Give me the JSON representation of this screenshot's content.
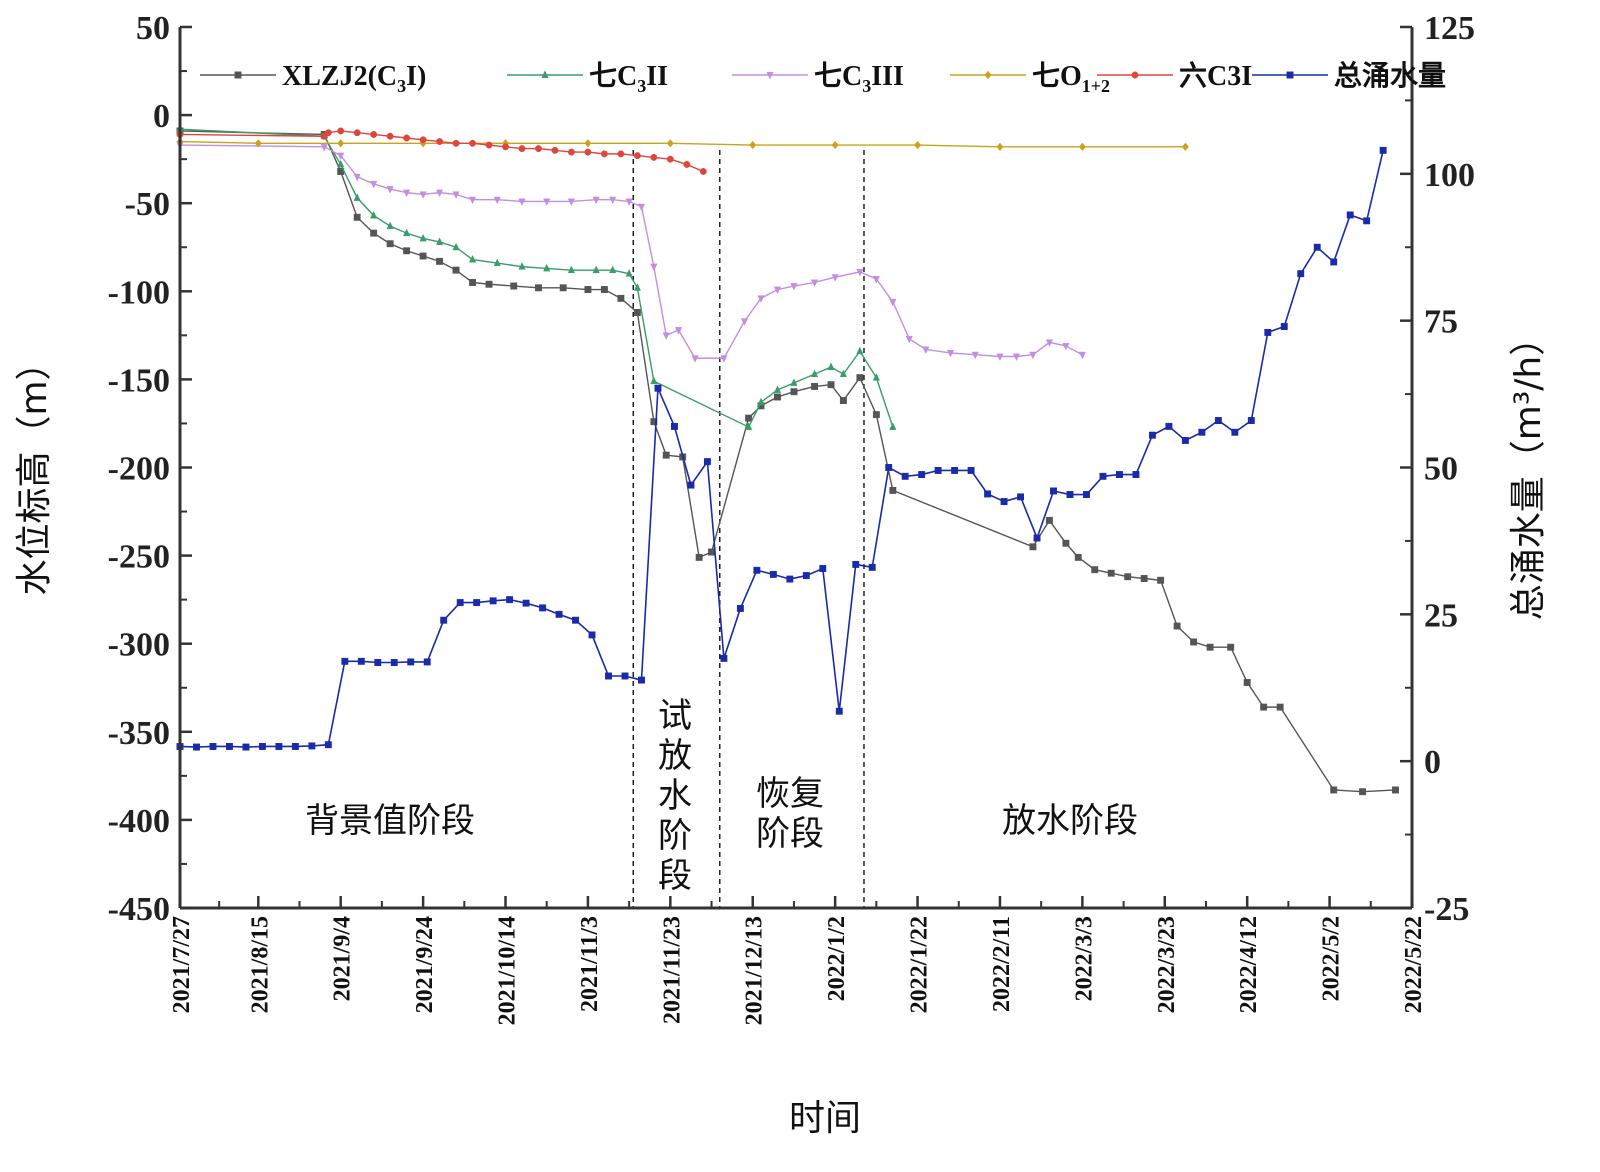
{
  "chart_data": {
    "type": "line",
    "xlabel": "时间",
    "ylabel_left": "水位标高（m）",
    "ylabel_right": "总涌水量（m³/h）",
    "x_ticks": [
      "2021/7/27",
      "2021/8/15",
      "2021/9/4",
      "2021/9/24",
      "2021/10/14",
      "2021/11/3",
      "2021/11/23",
      "2021/12/13",
      "2022/1/2",
      "2022/1/22",
      "2022/2/11",
      "2022/3/3",
      "2022/3/23",
      "2022/4/12",
      "2022/5/2",
      "2022/5/22"
    ],
    "y_left": {
      "min": -450,
      "max": 50,
      "ticks": [
        "50",
        "0",
        "-50",
        "-100",
        "-150",
        "-200",
        "-250",
        "-300",
        "-350",
        "-400",
        "-450"
      ]
    },
    "y_right": {
      "min": -25,
      "max": 125,
      "ticks": [
        "125",
        "100",
        "75",
        "50",
        "25",
        "0",
        "-25"
      ]
    },
    "phase_dividers": [
      "2021/11/14",
      "2021/12/5",
      "2022/1/9"
    ],
    "phases": [
      {
        "label": "背景值阶段"
      },
      {
        "label": "试放水阶段",
        "chars": [
          "试",
          "放",
          "水",
          "阶",
          "段"
        ]
      },
      {
        "label": "恢复阶段",
        "lines": [
          "恢复",
          "阶段"
        ]
      },
      {
        "label": "放水阶段"
      }
    ],
    "series": [
      {
        "name": "XLZJ2(C₃I)",
        "name_main": "XLZJ2(C",
        "name_sub": "3",
        "name_tail": "I)",
        "color": "#555555",
        "marker": "square",
        "axis": "left",
        "points": [
          [
            "2021/7/27",
            -9
          ],
          [
            "2021/8/31",
            -11
          ],
          [
            "2021/9/4",
            -32
          ],
          [
            "2021/9/8",
            -58
          ],
          [
            "2021/9/12",
            -67
          ],
          [
            "2021/9/16",
            -73
          ],
          [
            "2021/9/20",
            -77
          ],
          [
            "2021/9/24",
            -80
          ],
          [
            "2021/9/28",
            -83
          ],
          [
            "2021/10/2",
            -88
          ],
          [
            "2021/10/6",
            -95
          ],
          [
            "2021/10/10",
            -96
          ],
          [
            "2021/10/16",
            -97
          ],
          [
            "2021/10/22",
            -98
          ],
          [
            "2021/10/28",
            -98
          ],
          [
            "2021/11/3",
            -99
          ],
          [
            "2021/11/7",
            -99
          ],
          [
            "2021/11/11",
            -104
          ],
          [
            "2021/11/15",
            -112
          ],
          [
            "2021/11/19",
            -174
          ],
          [
            "2021/11/22",
            -193
          ],
          [
            "2021/11/26",
            -194
          ],
          [
            "2021/11/30",
            -251
          ],
          [
            "2021/12/3",
            -248
          ],
          [
            "2021/12/12",
            -172
          ],
          [
            "2021/12/15",
            -165
          ],
          [
            "2021/12/19",
            -160
          ],
          [
            "2021/12/23",
            -157
          ],
          [
            "2021/12/28",
            -154
          ],
          [
            "2022/1/1",
            -153
          ],
          [
            "2022/1/4",
            -162
          ],
          [
            "2022/1/8",
            -149
          ],
          [
            "2022/1/12",
            -170
          ],
          [
            "2022/1/16",
            -213
          ],
          [
            "2022/2/19",
            -245
          ],
          [
            "2022/2/23",
            -230
          ],
          [
            "2022/2/27",
            -243
          ],
          [
            "2022/3/2",
            -251
          ],
          [
            "2022/3/6",
            -258
          ],
          [
            "2022/3/10",
            -260
          ],
          [
            "2022/3/14",
            -262
          ],
          [
            "2022/3/18",
            -263
          ],
          [
            "2022/3/22",
            -264
          ],
          [
            "2022/3/26",
            -290
          ],
          [
            "2022/3/30",
            -299
          ],
          [
            "2022/4/3",
            -302
          ],
          [
            "2022/4/8",
            -302
          ],
          [
            "2022/4/12",
            -322
          ],
          [
            "2022/4/16",
            -336
          ],
          [
            "2022/4/20",
            -336
          ],
          [
            "2022/5/3",
            -383
          ],
          [
            "2022/5/10",
            -384
          ],
          [
            "2022/5/18",
            -383
          ]
        ]
      },
      {
        "name": "七C₃II",
        "name_main": "七C",
        "name_sub": "3",
        "name_tail": "II",
        "color": "#3a9d68",
        "marker": "triangle-up",
        "axis": "left",
        "points": [
          [
            "2021/7/27",
            -8
          ],
          [
            "2021/8/31",
            -12
          ],
          [
            "2021/9/4",
            -28
          ],
          [
            "2021/9/8",
            -47
          ],
          [
            "2021/9/12",
            -57
          ],
          [
            "2021/9/16",
            -63
          ],
          [
            "2021/9/20",
            -67
          ],
          [
            "2021/9/24",
            -70
          ],
          [
            "2021/9/28",
            -72
          ],
          [
            "2021/10/2",
            -75
          ],
          [
            "2021/10/6",
            -82
          ],
          [
            "2021/10/12",
            -84
          ],
          [
            "2021/10/18",
            -86
          ],
          [
            "2021/10/24",
            -87
          ],
          [
            "2021/10/30",
            -88
          ],
          [
            "2021/11/5",
            -88
          ],
          [
            "2021/11/9",
            -88
          ],
          [
            "2021/11/13",
            -90
          ],
          [
            "2021/11/15",
            -98
          ],
          [
            "2021/11/19",
            -151
          ],
          [
            "2021/12/12",
            -177
          ],
          [
            "2021/12/15",
            -163
          ],
          [
            "2021/12/19",
            -156
          ],
          [
            "2021/12/23",
            -152
          ],
          [
            "2021/12/28",
            -147
          ],
          [
            "2022/1/1",
            -143
          ],
          [
            "2022/1/4",
            -147
          ],
          [
            "2022/1/8",
            -134
          ],
          [
            "2022/1/12",
            -149
          ],
          [
            "2022/1/16",
            -177
          ]
        ]
      },
      {
        "name": "七C₃III",
        "name_main": "七C",
        "name_sub": "3",
        "name_tail": "III",
        "color": "#c48ee0",
        "marker": "triangle-down",
        "axis": "left",
        "points": [
          [
            "2021/7/27",
            -17
          ],
          [
            "2021/8/31",
            -18
          ],
          [
            "2021/9/4",
            -23
          ],
          [
            "2021/9/8",
            -35
          ],
          [
            "2021/9/12",
            -39
          ],
          [
            "2021/9/16",
            -42
          ],
          [
            "2021/9/20",
            -44
          ],
          [
            "2021/9/24",
            -45
          ],
          [
            "2021/9/28",
            -44
          ],
          [
            "2021/10/2",
            -45
          ],
          [
            "2021/10/6",
            -48
          ],
          [
            "2021/10/12",
            -48
          ],
          [
            "2021/10/18",
            -49
          ],
          [
            "2021/10/24",
            -49
          ],
          [
            "2021/10/30",
            -49
          ],
          [
            "2021/11/5",
            -48
          ],
          [
            "2021/11/9",
            -48
          ],
          [
            "2021/11/13",
            -49
          ],
          [
            "2021/11/16",
            -52
          ],
          [
            "2021/11/19",
            -86
          ],
          [
            "2021/11/22",
            -125
          ],
          [
            "2021/11/25",
            -122
          ],
          [
            "2021/11/29",
            -138
          ],
          [
            "2021/12/6",
            -138
          ],
          [
            "2021/12/11",
            -117
          ],
          [
            "2021/12/15",
            -104
          ],
          [
            "2021/12/19",
            -99
          ],
          [
            "2021/12/23",
            -97
          ],
          [
            "2021/12/28",
            -95
          ],
          [
            "2022/1/2",
            -92
          ],
          [
            "2022/1/8",
            -89
          ],
          [
            "2022/1/12",
            -93
          ],
          [
            "2022/1/16",
            -106
          ],
          [
            "2022/1/20",
            -127
          ],
          [
            "2022/1/24",
            -133
          ],
          [
            "2022/1/30",
            -135
          ],
          [
            "2022/2/5",
            -136
          ],
          [
            "2022/2/11",
            -137
          ],
          [
            "2022/2/15",
            -137
          ],
          [
            "2022/2/19",
            -136
          ],
          [
            "2022/2/23",
            -129
          ],
          [
            "2022/2/27",
            -131
          ],
          [
            "2022/3/3",
            -136
          ]
        ]
      },
      {
        "name": "七O₁₊₂",
        "name_main": "七O",
        "name_sub": "1+2",
        "name_tail": "",
        "color": "#c9a31a",
        "marker": "diamond",
        "axis": "left",
        "points": [
          [
            "2021/7/27",
            -15
          ],
          [
            "2021/8/15",
            -16
          ],
          [
            "2021/9/4",
            -16
          ],
          [
            "2021/9/24",
            -16
          ],
          [
            "2021/10/14",
            -16
          ],
          [
            "2021/11/3",
            -16
          ],
          [
            "2021/11/23",
            -16
          ],
          [
            "2021/12/13",
            -17
          ],
          [
            "2022/1/2",
            -17
          ],
          [
            "2022/1/22",
            -17
          ],
          [
            "2022/2/11",
            -18
          ],
          [
            "2022/3/3",
            -18
          ],
          [
            "2022/3/28",
            -18
          ]
        ]
      },
      {
        "name": "六C3I",
        "name_main": "六C3I",
        "name_sub": "",
        "name_tail": "",
        "color": "#e0453c",
        "marker": "circle",
        "axis": "left",
        "points": [
          [
            "2021/7/27",
            -11
          ],
          [
            "2021/8/31",
            -12
          ],
          [
            "2021/9/1",
            -10
          ],
          [
            "2021/9/4",
            -9
          ],
          [
            "2021/9/8",
            -10
          ],
          [
            "2021/9/12",
            -11
          ],
          [
            "2021/9/16",
            -12
          ],
          [
            "2021/9/20",
            -13
          ],
          [
            "2021/9/24",
            -14
          ],
          [
            "2021/9/28",
            -15
          ],
          [
            "2021/10/2",
            -16
          ],
          [
            "2021/10/6",
            -16
          ],
          [
            "2021/10/10",
            -17
          ],
          [
            "2021/10/14",
            -18
          ],
          [
            "2021/10/18",
            -19
          ],
          [
            "2021/10/22",
            -19
          ],
          [
            "2021/10/26",
            -20
          ],
          [
            "2021/10/30",
            -21
          ],
          [
            "2021/11/3",
            -21
          ],
          [
            "2021/11/7",
            -22
          ],
          [
            "2021/11/11",
            -22
          ],
          [
            "2021/11/15",
            -23
          ],
          [
            "2021/11/19",
            -24
          ],
          [
            "2021/11/23",
            -25
          ],
          [
            "2021/11/27",
            -28
          ],
          [
            "2021/12/1",
            -32
          ]
        ]
      },
      {
        "name": "总涌水量",
        "name_main": "总涌水量",
        "name_sub": "",
        "name_tail": "",
        "color": "#1a2aa8",
        "marker": "square",
        "axis": "right",
        "points": [
          [
            "2021/7/27",
            2.5
          ],
          [
            "2021/7/31",
            2.4
          ],
          [
            "2021/8/4",
            2.5
          ],
          [
            "2021/8/8",
            2.5
          ],
          [
            "2021/8/12",
            2.4
          ],
          [
            "2021/8/16",
            2.5
          ],
          [
            "2021/8/20",
            2.5
          ],
          [
            "2021/8/24",
            2.5
          ],
          [
            "2021/8/28",
            2.6
          ],
          [
            "2021/9/1",
            2.8
          ],
          [
            "2021/9/5",
            17
          ],
          [
            "2021/9/9",
            17
          ],
          [
            "2021/9/13",
            16.8
          ],
          [
            "2021/9/17",
            16.8
          ],
          [
            "2021/9/21",
            16.9
          ],
          [
            "2021/9/25",
            16.9
          ],
          [
            "2021/9/29",
            24
          ],
          [
            "2021/10/3",
            27
          ],
          [
            "2021/10/7",
            27
          ],
          [
            "2021/10/11",
            27.3
          ],
          [
            "2021/10/15",
            27.5
          ],
          [
            "2021/10/19",
            26.9
          ],
          [
            "2021/10/23",
            26.1
          ],
          [
            "2021/10/27",
            25
          ],
          [
            "2021/10/31",
            24
          ],
          [
            "2021/11/4",
            21.5
          ],
          [
            "2021/11/8",
            14.5
          ],
          [
            "2021/11/12",
            14.5
          ],
          [
            "2021/11/16",
            13.8
          ],
          [
            "2021/11/20",
            63.5
          ],
          [
            "2021/11/24",
            57
          ],
          [
            "2021/11/28",
            47
          ],
          [
            "2021/12/2",
            51
          ],
          [
            "2021/12/6",
            17.5
          ],
          [
            "2021/12/10",
            26
          ],
          [
            "2021/12/14",
            32.5
          ],
          [
            "2021/12/18",
            31.8
          ],
          [
            "2021/12/22",
            31
          ],
          [
            "2021/12/26",
            31.6
          ],
          [
            "2021/12/30",
            32.8
          ],
          [
            "2022/1/3",
            8.5
          ],
          [
            "2022/1/7",
            33.5
          ],
          [
            "2022/1/11",
            33
          ],
          [
            "2022/1/15",
            50
          ],
          [
            "2022/1/19",
            48.5
          ],
          [
            "2022/1/23",
            48.8
          ],
          [
            "2022/1/27",
            49.5
          ],
          [
            "2022/1/31",
            49.5
          ],
          [
            "2022/2/4",
            49.5
          ],
          [
            "2022/2/8",
            45.5
          ],
          [
            "2022/2/12",
            44.2
          ],
          [
            "2022/2/16",
            45
          ],
          [
            "2022/2/20",
            38
          ],
          [
            "2022/2/24",
            46
          ],
          [
            "2022/2/28",
            45.4
          ],
          [
            "2022/3/4",
            45.4
          ],
          [
            "2022/3/8",
            48.5
          ],
          [
            "2022/3/12",
            48.8
          ],
          [
            "2022/3/16",
            48.8
          ],
          [
            "2022/3/20",
            55.5
          ],
          [
            "2022/3/24",
            57
          ],
          [
            "2022/3/28",
            54.6
          ],
          [
            "2022/4/1",
            56
          ],
          [
            "2022/4/5",
            58
          ],
          [
            "2022/4/9",
            56
          ],
          [
            "2022/4/13",
            58
          ],
          [
            "2022/4/17",
            73
          ],
          [
            "2022/4/21",
            74
          ],
          [
            "2022/4/25",
            83
          ],
          [
            "2022/4/29",
            87.5
          ],
          [
            "2022/5/3",
            85
          ],
          [
            "2022/5/7",
            93
          ],
          [
            "2022/5/11",
            92
          ],
          [
            "2022/5/15",
            104
          ]
        ]
      }
    ]
  }
}
